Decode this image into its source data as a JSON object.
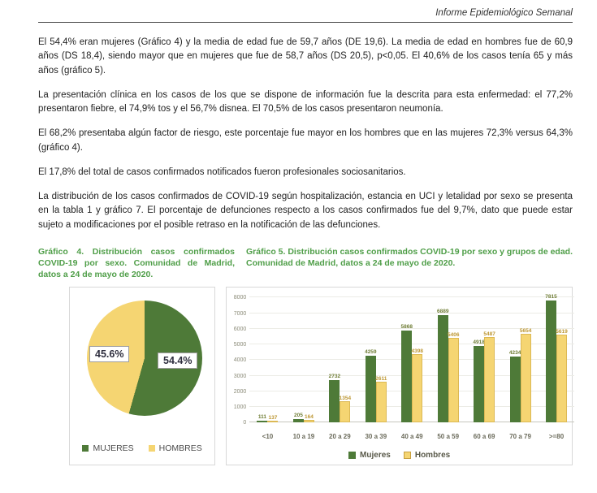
{
  "header": {
    "title": "Informe Epidemiológico Semanal"
  },
  "paragraphs": {
    "p1": "El 54,4% eran mujeres (Gráfico 4) y la media de edad fue de 59,7 años (DE 19,6). La media de edad en hombres fue de 60,9 años (DS 18,4), siendo mayor que en mujeres que fue de 58,7 años (DS 20,5), p<0,05. El 40,6% de los casos tenía 65 y más años (gráfico 5).",
    "p2": "La presentación clínica en los casos de los que se dispone de información fue la descrita para esta enfermedad: el 77,2% presentaron fiebre, el 74,9% tos y el 56,7% disnea. El 70,5% de los casos presentaron neumonía.",
    "p3": "El 68,2% presentaba algún factor de riesgo, este porcentaje fue mayor en los hombres que en las mujeres 72,3% versus 64,3% (gráfico 4).",
    "p4": "El 17,8% del total de casos confirmados notificados fueron profesionales sociosanitarios.",
    "p5": "La distribución de los casos confirmados de COVID-19 según hospitalización, estancia en UCI y letalidad por sexo se presenta en la tabla 1 y gráfico 7. El porcentaje de defunciones respecto a los casos confirmados fue del 9,7%, dato que puede estar sujeto a modificaciones por el posible retraso en la notificación de las defunciones."
  },
  "figures": {
    "fig4_caption": "Gráfico 4. Distribución casos confirmados COVID-19 por sexo. Comunidad de Madrid, datos a 24 de mayo de 2020.",
    "fig5_caption": "Gráfico 5. Distribución casos confirmados COVID-19 por sexo y grupos de edad. Comunidad de Madrid, datos a 24 de mayo de 2020."
  },
  "colors": {
    "caption_green": "#4f9e48",
    "series_green": "#4e7a38",
    "series_yellow": "#f5d572",
    "label_green": "#6f7d35",
    "label_yellow": "#bd9733"
  },
  "chart_data": [
    {
      "type": "pie",
      "title": "Gráfico 4. Distribución casos confirmados COVID-19 por sexo",
      "labels": [
        "MUJERES",
        "HOMBRES"
      ],
      "values": [
        54.4,
        45.6
      ],
      "value_labels": [
        "54.4%",
        "45.6%"
      ],
      "colors": [
        "#4e7a38",
        "#f5d572"
      ],
      "legend_position": "bottom"
    },
    {
      "type": "bar",
      "title": "Gráfico 5. Distribución casos confirmados COVID-19 por sexo y grupos de edad",
      "categories": [
        "<10",
        "10 a 19",
        "20 a 29",
        "30 a 39",
        "40 a 49",
        "50 a 59",
        "60 a 69",
        "70 a 79",
        ">=80"
      ],
      "series": [
        {
          "name": "Mujeres",
          "color": "#4e7a38",
          "label_color": "#6f7d35",
          "values": [
            111,
            205,
            2732,
            4259,
            5868,
            6889,
            4918,
            4234,
            7815
          ]
        },
        {
          "name": "Hombres",
          "color": "#f5d572",
          "label_color": "#bd9733",
          "values": [
            137,
            164,
            1354,
            2611,
            4398,
            5406,
            5487,
            5654,
            5619
          ]
        }
      ],
      "ylim": [
        0,
        8000
      ],
      "ytick_step": 1000,
      "grid": true,
      "legend_position": "bottom"
    }
  ]
}
